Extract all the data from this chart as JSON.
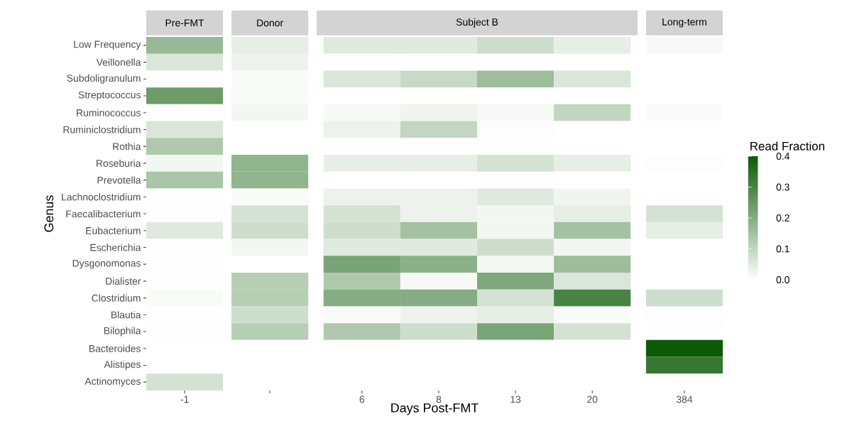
{
  "chart_data": {
    "type": "heatmap",
    "ylabel": "Genus",
    "xlabel": "Days Post-FMT",
    "clabel": "Read Fraction",
    "annotations": [
      "Pre-FMT",
      "Donor",
      "Subject B",
      "Long-term"
    ],
    "categories": [
      "-1",
      null,
      "6",
      "8",
      "13",
      "20",
      "384"
    ],
    "y_categories": [
      "Low Frequency",
      "Veillonella",
      "Subdoligranulum",
      "Streptococcus",
      "Ruminococcus",
      "Ruminiclostridium",
      "Rothia",
      "Roseburia",
      "Prevotella",
      "Lachnoclostridium",
      "Faecalibacterium",
      "Eubacterium",
      "Escherichia",
      "Dysgonomonas",
      "Dialister",
      "Clostridium",
      "Blautia",
      "Bilophila",
      "Bacteroides",
      "Alistipes",
      "Actinomyces"
    ],
    "clim": [
      0,
      0.4
    ],
    "cticks": [
      {
        "value": 0,
        "label": "0.0"
      },
      0.1,
      0.2,
      0.3,
      0.4
    ],
    "cells": [
      [
        0.17,
        0.04,
        0.05,
        0.05,
        0.08,
        0.04,
        0.015
      ],
      [
        0.06,
        0.03,
        0,
        0,
        0,
        0,
        0
      ],
      [
        0,
        0.01,
        0.06,
        0.09,
        0.16,
        0.06,
        0
      ],
      [
        0.24,
        0.01,
        0,
        0,
        0,
        0,
        0
      ],
      [
        0.005,
        0.02,
        0.015,
        0.025,
        0.015,
        0.1,
        0.01
      ],
      [
        0.06,
        0,
        0.03,
        0.1,
        0.005,
        0,
        0
      ],
      [
        0.13,
        0,
        0,
        0,
        0,
        0,
        0
      ],
      [
        0.02,
        0.18,
        0.04,
        0.04,
        0.07,
        0.04,
        0.005
      ],
      [
        0.14,
        0.18,
        0,
        0,
        0,
        0,
        0
      ],
      [
        0.003,
        0.01,
        0.03,
        0.03,
        0.05,
        0.025,
        0
      ],
      [
        0.003,
        0.07,
        0.07,
        0.03,
        0.02,
        0.04,
        0.07
      ],
      [
        0.05,
        0.08,
        0.08,
        0.15,
        0.02,
        0.15,
        0.04
      ],
      [
        0.003,
        0.02,
        0.05,
        0.05,
        0.08,
        0.02,
        0
      ],
      [
        0.003,
        0,
        0.22,
        0.19,
        0.02,
        0.16,
        0
      ],
      [
        0.003,
        0.12,
        0.13,
        0.015,
        0.21,
        0.06,
        0
      ],
      [
        0.01,
        0.12,
        0.2,
        0.2,
        0.07,
        0.3,
        0.08
      ],
      [
        0.003,
        0.08,
        0.01,
        0.03,
        0.04,
        0.01,
        0.005
      ],
      [
        0.003,
        0.12,
        0.13,
        0.08,
        0.22,
        0.07,
        0.003
      ],
      [
        0,
        0,
        0,
        0,
        0,
        0,
        0.4
      ],
      [
        0,
        0,
        0,
        0,
        0,
        0,
        0.33
      ],
      [
        0.07,
        0,
        0,
        0,
        0,
        0,
        0
      ]
    ]
  }
}
